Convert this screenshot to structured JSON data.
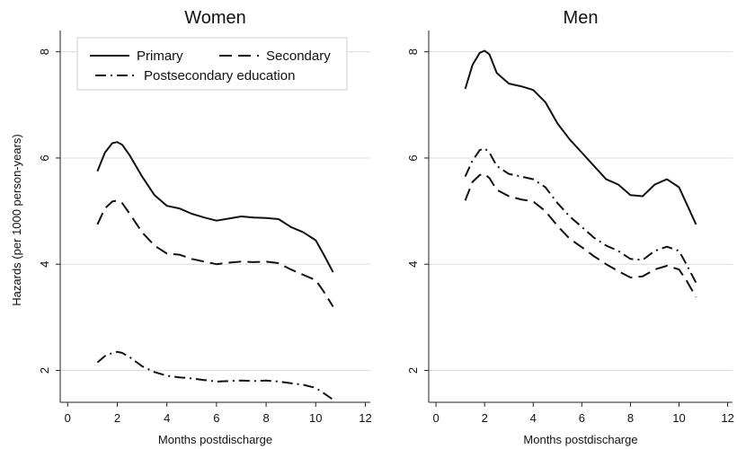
{
  "chart_data": {
    "type": "line",
    "ylabel": "Hazards (per 1000 person-years)",
    "legend": {
      "placement": "top-left, inside Women panel",
      "entries": [
        {
          "label": "Primary",
          "dash": "solid"
        },
        {
          "label": "Secondary",
          "dash": "dashed"
        },
        {
          "label": "Postsecondary education",
          "dash": "dash-dot"
        }
      ]
    },
    "grid": "horizontal",
    "panels": [
      {
        "title": "Women",
        "xlabel": "Months postdischarge",
        "xlim": [
          -0.3,
          12.2
        ],
        "ylim": [
          1.4,
          8.4
        ],
        "xticks": [
          0,
          2,
          4,
          6,
          8,
          10,
          12
        ],
        "yticks": [
          2,
          4,
          6,
          8
        ],
        "series": [
          {
            "dash": "solid",
            "x": [
              1.2,
              1.5,
              1.8,
              2.0,
              2.2,
              2.5,
              3.0,
              3.5,
              4.0,
              4.5,
              5.0,
              5.5,
              6.0,
              6.5,
              7.0,
              7.5,
              8.0,
              8.5,
              9.0,
              9.5,
              10.0,
              10.3,
              10.7
            ],
            "values": [
              5.75,
              6.1,
              6.28,
              6.3,
              6.25,
              6.05,
              5.65,
              5.3,
              5.1,
              5.05,
              4.95,
              4.88,
              4.82,
              4.86,
              4.9,
              4.88,
              4.87,
              4.85,
              4.7,
              4.6,
              4.45,
              4.2,
              3.85
            ]
          },
          {
            "dash": "dashed",
            "x": [
              1.2,
              1.5,
              1.8,
              2.0,
              2.2,
              2.5,
              3.0,
              3.5,
              4.0,
              4.5,
              5.0,
              5.5,
              6.0,
              6.5,
              7.0,
              7.5,
              8.0,
              8.5,
              9.0,
              9.5,
              10.0,
              10.3,
              10.7
            ],
            "values": [
              4.75,
              5.05,
              5.18,
              5.2,
              5.15,
              4.95,
              4.6,
              4.35,
              4.2,
              4.18,
              4.1,
              4.05,
              4.0,
              4.03,
              4.05,
              4.04,
              4.05,
              4.02,
              3.9,
              3.8,
              3.7,
              3.5,
              3.2
            ]
          },
          {
            "dash": "dash-dot",
            "x": [
              1.2,
              1.5,
              1.8,
              2.0,
              2.2,
              2.5,
              3.0,
              3.5,
              4.0,
              4.5,
              5.0,
              5.5,
              6.0,
              6.5,
              7.0,
              7.5,
              8.0,
              8.5,
              9.0,
              9.5,
              10.0,
              10.3,
              10.7
            ],
            "values": [
              2.15,
              2.27,
              2.33,
              2.35,
              2.33,
              2.25,
              2.08,
              1.97,
              1.9,
              1.87,
              1.85,
              1.82,
              1.79,
              1.8,
              1.81,
              1.8,
              1.81,
              1.79,
              1.76,
              1.73,
              1.67,
              1.58,
              1.45
            ]
          }
        ]
      },
      {
        "title": "Men",
        "xlabel": "Months postdischarge",
        "xlim": [
          -0.3,
          12.2
        ],
        "ylim": [
          1.4,
          8.4
        ],
        "xticks": [
          0,
          2,
          4,
          6,
          8,
          10,
          12
        ],
        "yticks": [
          2,
          4,
          6,
          8
        ],
        "series": [
          {
            "dash": "solid",
            "x": [
              1.2,
              1.5,
              1.8,
              2.0,
              2.2,
              2.5,
              3.0,
              3.5,
              4.0,
              4.5,
              5.0,
              5.5,
              6.0,
              6.5,
              7.0,
              7.5,
              8.0,
              8.5,
              9.0,
              9.5,
              10.0,
              10.3,
              10.7
            ],
            "values": [
              7.3,
              7.75,
              7.98,
              8.02,
              7.95,
              7.6,
              7.4,
              7.35,
              7.28,
              7.05,
              6.65,
              6.35,
              6.1,
              5.85,
              5.6,
              5.5,
              5.3,
              5.28,
              5.5,
              5.6,
              5.45,
              5.15,
              4.75
            ]
          },
          {
            "dash": "dash-dot",
            "x": [
              1.2,
              1.5,
              1.8,
              2.0,
              2.2,
              2.5,
              3.0,
              3.5,
              4.0,
              4.5,
              5.0,
              5.5,
              6.0,
              6.5,
              7.0,
              7.5,
              8.0,
              8.5,
              9.0,
              9.5,
              10.0,
              10.3,
              10.7
            ],
            "values": [
              5.65,
              5.95,
              6.15,
              6.18,
              6.1,
              5.85,
              5.7,
              5.65,
              5.6,
              5.45,
              5.15,
              4.9,
              4.7,
              4.5,
              4.35,
              4.25,
              4.1,
              4.08,
              4.25,
              4.33,
              4.25,
              4.0,
              3.65
            ]
          },
          {
            "dash": "dashed",
            "x": [
              1.2,
              1.5,
              1.8,
              2.0,
              2.2,
              2.5,
              3.0,
              3.5,
              4.0,
              4.5,
              5.0,
              5.5,
              6.0,
              6.5,
              7.0,
              7.5,
              8.0,
              8.5,
              9.0,
              9.5,
              10.0,
              10.3,
              10.7
            ],
            "values": [
              5.2,
              5.55,
              5.68,
              5.7,
              5.62,
              5.4,
              5.28,
              5.22,
              5.18,
              5.0,
              4.72,
              4.48,
              4.32,
              4.15,
              4.0,
              3.87,
              3.75,
              3.77,
              3.9,
              3.97,
              3.9,
              3.7,
              3.38
            ]
          }
        ]
      }
    ]
  }
}
